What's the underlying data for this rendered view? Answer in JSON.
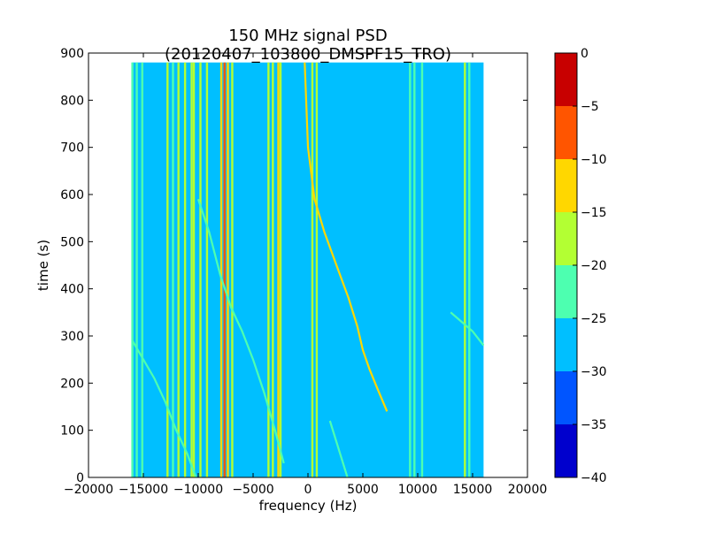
{
  "chart_data": {
    "type": "heatmap",
    "title": "150 MHz signal PSD (20120407_103800_DMSPF15_TRO)",
    "xlabel": "frequency (Hz)",
    "ylabel": "time (s)",
    "xlim": [
      -20000,
      20000
    ],
    "ylim": [
      0,
      900
    ],
    "x_ticks": [
      -20000,
      -15000,
      -10000,
      -5000,
      0,
      5000,
      10000,
      15000,
      20000
    ],
    "x_tick_labels": [
      "−20000",
      "−15000",
      "−10000",
      "−5000",
      "0",
      "5000",
      "10000",
      "15000",
      "20000"
    ],
    "y_ticks": [
      0,
      100,
      200,
      300,
      400,
      500,
      600,
      700,
      800,
      900
    ],
    "y_tick_labels": [
      "0",
      "100",
      "200",
      "300",
      "400",
      "500",
      "600",
      "700",
      "800",
      "900"
    ],
    "data_extent": {
      "freq_min": -16000,
      "freq_max": 16000,
      "time_min": 0,
      "time_max": 880
    },
    "background_level": -28,
    "colorbar": {
      "levels": [
        -40,
        -35,
        -30,
        -25,
        -20,
        -15,
        -10,
        -5,
        0
      ],
      "level_labels": [
        "−40",
        "−35",
        "−30",
        "−25",
        "−20",
        "−15",
        "−10",
        "−5",
        "0"
      ],
      "colors": [
        "#0000cd",
        "#0055ff",
        "#00bfff",
        "#4dffb0",
        "#b3ff33",
        "#ffd700",
        "#ff5500",
        "#c80000"
      ]
    },
    "vertical_lines": [
      {
        "freq": -16000,
        "level": -22
      },
      {
        "freq": -15600,
        "level": -24
      },
      {
        "freq": -15100,
        "level": -22
      },
      {
        "freq": -12800,
        "level": -20
      },
      {
        "freq": -12300,
        "level": -22
      },
      {
        "freq": -11800,
        "level": -18
      },
      {
        "freq": -11200,
        "level": -20
      },
      {
        "freq": -10600,
        "level": -16
      },
      {
        "freq": -10400,
        "level": -20
      },
      {
        "freq": -9800,
        "level": -18
      },
      {
        "freq": -9200,
        "level": -20
      },
      {
        "freq": -7900,
        "level": -12
      },
      {
        "freq": -7600,
        "level": -10
      },
      {
        "freq": -7300,
        "level": -14
      },
      {
        "freq": -6900,
        "level": -18
      },
      {
        "freq": -3600,
        "level": -18
      },
      {
        "freq": -3200,
        "level": -20
      },
      {
        "freq": -2700,
        "level": -14
      },
      {
        "freq": -2500,
        "level": -18
      },
      {
        "freq": 400,
        "level": -20
      },
      {
        "freq": 800,
        "level": -20
      },
      {
        "freq": 9300,
        "level": -22
      },
      {
        "freq": 9700,
        "level": -22
      },
      {
        "freq": 10400,
        "level": -24
      },
      {
        "freq": 14300,
        "level": -20
      },
      {
        "freq": 14700,
        "level": -24
      }
    ],
    "doppler_traces": [
      {
        "name": "",
        "level": -15,
        "points": [
          [
            -300,
            880
          ],
          [
            0,
            700
          ],
          [
            600,
            590
          ],
          [
            1500,
            520
          ],
          [
            2600,
            450
          ],
          [
            3700,
            380
          ],
          [
            4500,
            320
          ],
          [
            5000,
            270
          ],
          [
            5600,
            230
          ],
          [
            6300,
            190
          ],
          [
            7200,
            140
          ]
        ]
      },
      {
        "name": "",
        "level": -22,
        "points": [
          [
            -16000,
            290
          ],
          [
            -15000,
            250
          ],
          [
            -14000,
            210
          ],
          [
            -13000,
            160
          ],
          [
            -12000,
            100
          ],
          [
            -11000,
            50
          ],
          [
            -10200,
            0
          ]
        ]
      },
      {
        "name": "",
        "level": -22,
        "points": [
          [
            -10000,
            590
          ],
          [
            -9000,
            520
          ],
          [
            -8000,
            430
          ],
          [
            -7000,
            360
          ],
          [
            -6000,
            310
          ],
          [
            -5000,
            250
          ],
          [
            -4000,
            180
          ],
          [
            -3000,
            100
          ],
          [
            -2200,
            30
          ]
        ]
      },
      {
        "name": "",
        "level": -24,
        "points": [
          [
            13000,
            350
          ],
          [
            14000,
            330
          ],
          [
            15000,
            310
          ],
          [
            16000,
            280
          ]
        ]
      },
      {
        "name": "",
        "level": -24,
        "points": [
          [
            2000,
            120
          ],
          [
            2800,
            60
          ],
          [
            3600,
            0
          ]
        ]
      }
    ]
  }
}
